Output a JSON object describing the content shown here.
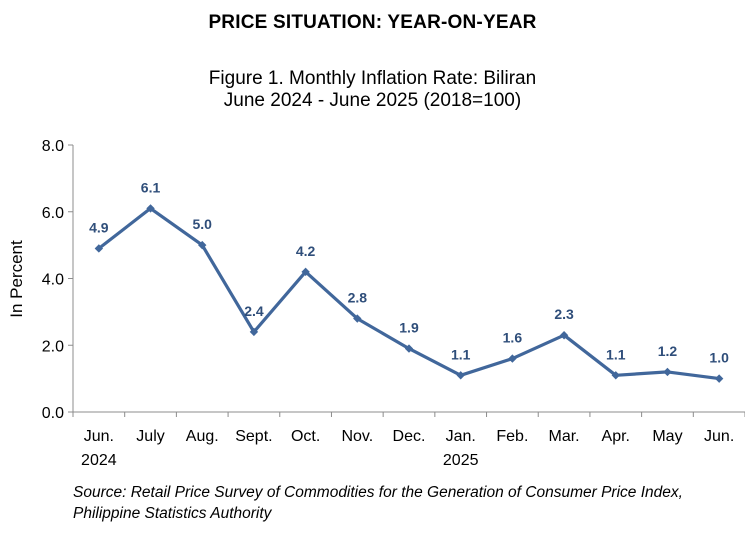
{
  "heading": "PRICE SITUATION: YEAR-ON-YEAR",
  "source": "Source: Retail Price Survey of Commodities for the Generation of Consumer Price Index, Philippine Statistics Authority",
  "chart_data": {
    "type": "line",
    "title": "Figure 1. Monthly Inflation Rate: Biliran",
    "subtitle": "June 2024 - June 2025 (2018=100)",
    "xlabel": "",
    "ylabel": "In Percent",
    "ylim": [
      0,
      8
    ],
    "yticks": [
      "0.0",
      "2.0",
      "4.0",
      "6.0",
      "8.0"
    ],
    "grid": false,
    "categories": [
      "Jun.",
      "July",
      "Aug.",
      "Sept.",
      "Oct.",
      "Nov.",
      "Dec.",
      "Jan.",
      "Feb.",
      "Mar.",
      "Apr.",
      "May",
      "Jun."
    ],
    "category_sublabels": [
      "2024",
      "",
      "",
      "",
      "",
      "",
      "",
      "2025",
      "",
      "",
      "",
      "",
      ""
    ],
    "series": [
      {
        "values": [
          4.9,
          6.1,
          5.0,
          2.4,
          4.2,
          2.8,
          1.9,
          1.1,
          1.6,
          2.3,
          1.1,
          1.2,
          1.0
        ]
      }
    ],
    "data_labels": [
      "4.9",
      "6.1",
      "5.0",
      "2.4",
      "4.2",
      "2.8",
      "1.9",
      "1.1",
      "1.6",
      "2.3",
      "1.1",
      "1.2",
      "1.0"
    ],
    "line_color": "#41679B",
    "label_color": "#2F4E7A"
  }
}
